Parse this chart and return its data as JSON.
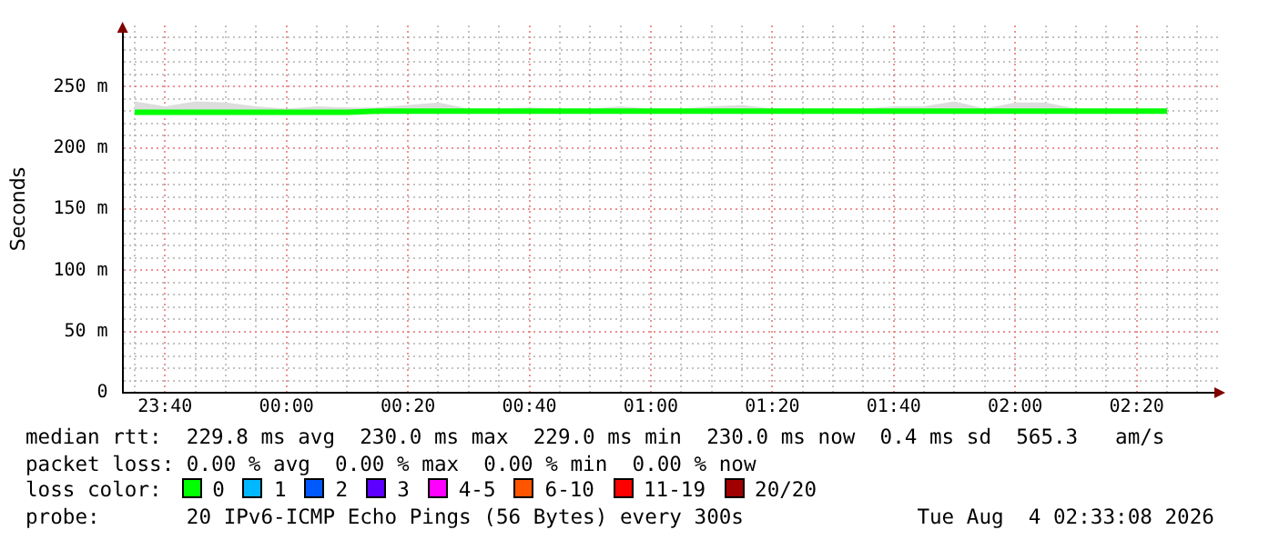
{
  "chart_data": {
    "type": "line",
    "ylabel": "Seconds",
    "legend_title": "loss color:",
    "legend": "bottom",
    "grid": true,
    "marker": "none",
    "line_style": "solid",
    "x": [
      "2026-08-03T23:35",
      "2026-08-03T23:40",
      "2026-08-03T23:45",
      "2026-08-03T23:50",
      "2026-08-03T23:55",
      "2026-08-04T00:00",
      "2026-08-04T00:05",
      "2026-08-04T00:10",
      "2026-08-04T00:15",
      "2026-08-04T00:20",
      "2026-08-04T00:25",
      "2026-08-04T00:30",
      "2026-08-04T00:35",
      "2026-08-04T00:40",
      "2026-08-04T00:45",
      "2026-08-04T00:50",
      "2026-08-04T00:55",
      "2026-08-04T01:00",
      "2026-08-04T01:05",
      "2026-08-04T01:10",
      "2026-08-04T01:15",
      "2026-08-04T01:20",
      "2026-08-04T01:25",
      "2026-08-04T01:30",
      "2026-08-04T01:35",
      "2026-08-04T01:40",
      "2026-08-04T01:45",
      "2026-08-04T01:50",
      "2026-08-04T01:55",
      "2026-08-04T02:00",
      "2026-08-04T02:05",
      "2026-08-04T02:10",
      "2026-08-04T02:15",
      "2026-08-04T02:20",
      "2026-08-04T02:25"
    ],
    "series": [
      {
        "name": "0",
        "color": "#00ff00",
        "values": [
          229,
          229,
          229,
          229,
          229,
          229,
          229,
          229,
          230,
          230,
          230,
          230,
          230,
          230,
          230,
          230,
          230,
          230,
          230,
          230,
          230,
          230,
          230,
          230,
          230,
          230,
          230,
          230,
          230,
          230,
          230,
          230,
          230,
          230,
          230
        ],
        "lower": [
          228,
          228,
          228,
          228,
          228,
          228,
          228,
          228,
          228,
          228,
          228,
          228,
          228,
          228,
          228,
          228,
          228,
          228,
          228,
          228,
          228,
          228,
          228,
          228,
          228,
          228,
          228,
          228,
          228,
          228,
          228,
          228,
          228,
          228,
          228
        ],
        "upper": [
          238,
          234,
          238,
          237,
          234,
          232,
          234,
          233,
          233,
          235,
          237,
          232,
          232,
          233,
          232,
          232,
          234,
          232,
          232,
          234,
          235,
          232,
          232,
          232,
          232,
          234,
          234,
          238,
          232,
          237,
          237,
          232,
          232,
          232,
          232
        ]
      },
      {
        "name": "1",
        "color": "#00b8ff",
        "values": [
          null,
          null,
          null,
          null,
          null,
          null,
          null,
          null,
          null,
          null,
          null,
          null,
          null,
          null,
          null,
          null,
          null,
          null,
          null,
          null,
          null,
          null,
          null,
          null,
          null,
          null,
          null,
          null,
          null,
          null,
          null,
          null,
          null,
          null,
          null
        ]
      },
      {
        "name": "2",
        "color": "#0059ff",
        "values": [
          null,
          null,
          null,
          null,
          null,
          null,
          null,
          null,
          null,
          null,
          null,
          null,
          null,
          null,
          null,
          null,
          null,
          null,
          null,
          null,
          null,
          null,
          null,
          null,
          null,
          null,
          null,
          null,
          null,
          null,
          null,
          null,
          null,
          null,
          null
        ]
      },
      {
        "name": "3",
        "color": "#5e00ff",
        "values": [
          null,
          null,
          null,
          null,
          null,
          null,
          null,
          null,
          null,
          null,
          null,
          null,
          null,
          null,
          null,
          null,
          null,
          null,
          null,
          null,
          null,
          null,
          null,
          null,
          null,
          null,
          null,
          null,
          null,
          null,
          null,
          null,
          null,
          null,
          null
        ]
      },
      {
        "name": "4-5",
        "color": "#ff00ff",
        "values": [
          null,
          null,
          null,
          null,
          null,
          null,
          null,
          null,
          null,
          null,
          null,
          null,
          null,
          null,
          null,
          null,
          null,
          null,
          null,
          null,
          null,
          null,
          null,
          null,
          null,
          null,
          null,
          null,
          null,
          null,
          null,
          null,
          null,
          null,
          null
        ]
      },
      {
        "name": "6-10",
        "color": "#ff5500",
        "values": [
          null,
          null,
          null,
          null,
          null,
          null,
          null,
          null,
          null,
          null,
          null,
          null,
          null,
          null,
          null,
          null,
          null,
          null,
          null,
          null,
          null,
          null,
          null,
          null,
          null,
          null,
          null,
          null,
          null,
          null,
          null,
          null,
          null,
          null,
          null
        ]
      },
      {
        "name": "11-19",
        "color": "#ff0000",
        "values": [
          null,
          null,
          null,
          null,
          null,
          null,
          null,
          null,
          null,
          null,
          null,
          null,
          null,
          null,
          null,
          null,
          null,
          null,
          null,
          null,
          null,
          null,
          null,
          null,
          null,
          null,
          null,
          null,
          null,
          null,
          null,
          null,
          null,
          null,
          null
        ]
      },
      {
        "name": "20/20",
        "color": "#a10000",
        "values": [
          null,
          null,
          null,
          null,
          null,
          null,
          null,
          null,
          null,
          null,
          null,
          null,
          null,
          null,
          null,
          null,
          null,
          null,
          null,
          null,
          null,
          null,
          null,
          null,
          null,
          null,
          null,
          null,
          null,
          null,
          null,
          null,
          null,
          null,
          null
        ]
      }
    ],
    "xlim": [
      "2026-08-03T23:33",
      "2026-08-04T02:34"
    ],
    "xticks": [
      {
        "value": "2026-08-03T23:35",
        "label": null
      },
      {
        "value": "2026-08-03T23:40",
        "label": "23:40"
      },
      {
        "value": "2026-08-03T23:45",
        "label": null
      },
      {
        "value": "2026-08-03T23:50",
        "label": null
      },
      {
        "value": "2026-08-03T23:55",
        "label": null
      },
      {
        "value": "2026-08-04T00:00",
        "label": "00:00"
      },
      {
        "value": "2026-08-04T00:05",
        "label": null
      },
      {
        "value": "2026-08-04T00:10",
        "label": null
      },
      {
        "value": "2026-08-04T00:15",
        "label": null
      },
      {
        "value": "2026-08-04T00:20",
        "label": "00:20"
      },
      {
        "value": "2026-08-04T00:25",
        "label": null
      },
      {
        "value": "2026-08-04T00:30",
        "label": null
      },
      {
        "value": "2026-08-04T00:35",
        "label": null
      },
      {
        "value": "2026-08-04T00:40",
        "label": "00:40"
      },
      {
        "value": "2026-08-04T00:45",
        "label": null
      },
      {
        "value": "2026-08-04T00:50",
        "label": null
      },
      {
        "value": "2026-08-04T00:55",
        "label": null
      },
      {
        "value": "2026-08-04T01:00",
        "label": "01:00"
      },
      {
        "value": "2026-08-04T01:05",
        "label": null
      },
      {
        "value": "2026-08-04T01:10",
        "label": null
      },
      {
        "value": "2026-08-04T01:15",
        "label": null
      },
      {
        "value": "2026-08-04T01:20",
        "label": "01:20"
      },
      {
        "value": "2026-08-04T01:25",
        "label": null
      },
      {
        "value": "2026-08-04T01:30",
        "label": null
      },
      {
        "value": "2026-08-04T01:35",
        "label": null
      },
      {
        "value": "2026-08-04T01:40",
        "label": "01:40"
      },
      {
        "value": "2026-08-04T01:45",
        "label": null
      },
      {
        "value": "2026-08-04T01:50",
        "label": null
      },
      {
        "value": "2026-08-04T01:55",
        "label": null
      },
      {
        "value": "2026-08-04T02:00",
        "label": "02:00"
      },
      {
        "value": "2026-08-04T02:05",
        "label": null
      },
      {
        "value": "2026-08-04T02:10",
        "label": null
      },
      {
        "value": "2026-08-04T02:15",
        "label": null
      },
      {
        "value": "2026-08-04T02:20",
        "label": "02:20"
      },
      {
        "value": "2026-08-04T02:25",
        "label": null
      },
      {
        "value": "2026-08-04T02:30",
        "label": null
      }
    ],
    "ylim": [
      0,
      300
    ],
    "yticks": [
      0,
      {
        "value": 10,
        "label": null
      },
      {
        "value": 20,
        "label": null
      },
      {
        "value": 30,
        "label": null
      },
      {
        "value": 40,
        "label": null
      },
      {
        "value": 50,
        "label": "50 m"
      },
      {
        "value": 60,
        "label": null
      },
      {
        "value": 70,
        "label": null
      },
      {
        "value": 80,
        "label": null
      },
      {
        "value": 90,
        "label": null
      },
      {
        "value": 100,
        "label": "100 m"
      },
      {
        "value": 110,
        "label": null
      },
      {
        "value": 120,
        "label": null
      },
      {
        "value": 130,
        "label": null
      },
      {
        "value": 140,
        "label": null
      },
      {
        "value": 150,
        "label": "150 m"
      },
      {
        "value": 160,
        "label": null
      },
      {
        "value": 170,
        "label": null
      },
      {
        "value": 180,
        "label": null
      },
      {
        "value": 190,
        "label": null
      },
      {
        "value": 200,
        "label": "200 m"
      },
      {
        "value": 210,
        "label": null
      },
      {
        "value": 220,
        "label": null
      },
      {
        "value": 230,
        "label": null
      },
      {
        "value": 240,
        "label": null
      },
      {
        "value": 250,
        "label": "250 m"
      },
      {
        "value": 260,
        "label": null
      },
      {
        "value": 270,
        "label": null
      },
      {
        "value": 280,
        "label": null
      },
      {
        "value": 290,
        "label": null
      }
    ],
    "annotations": [
      "median rtt:  229.8 ms avg  230.0 ms max  229.0 ms min  230.0 ms now  0.4 ms sd  565.3   am/s",
      "packet loss: 0.00 % avg  0.00 % max  0.00 % min  0.00 % now",
      "probe:       20 IPv6-ICMP Echo Pings (56 Bytes) every 300s              Tue Aug  4 02:33:08 2026"
    ]
  }
}
